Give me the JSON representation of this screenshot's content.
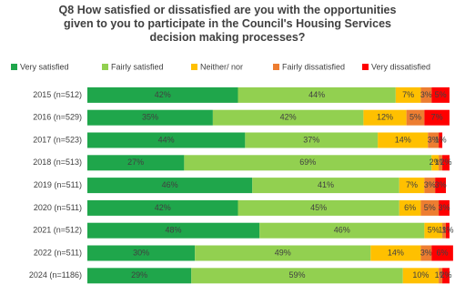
{
  "chart_data": {
    "type": "bar",
    "orientation": "horizontal",
    "stacked": true,
    "title": "Q8 How satisfied or dissatisfied are you with the opportunities given to you to participate in the Council's Housing Services decision making processes?",
    "legend": "top",
    "xlim": [
      0,
      100
    ],
    "categories": [
      "2015 (n=512)",
      "2016 (n=529)",
      "2017 (n=523)",
      "2018 (n=513)",
      "2019 (n=511)",
      "2020 (n=511)",
      "2021 (n=512)",
      "2022 (n=511)",
      "2024 (n=1186)"
    ],
    "series": [
      {
        "name": "Very satisfied",
        "color": "#1fa64b",
        "values": [
          42,
          35,
          44,
          27,
          46,
          42,
          48,
          30,
          29
        ],
        "value_labels": [
          "42%",
          "35%",
          "44%",
          "27%",
          "46%",
          "42%",
          "48%",
          "30%",
          "29%"
        ]
      },
      {
        "name": "Fairly satisfied",
        "color": "#92d050",
        "values": [
          44,
          42,
          37,
          69,
          41,
          45,
          46,
          49,
          59
        ],
        "value_labels": [
          "44%",
          "42%",
          "37%",
          "69%",
          "41%",
          "45%",
          "46%",
          "49%",
          "59%"
        ]
      },
      {
        "name": "Neither/ nor",
        "color": "#ffc000",
        "values": [
          7,
          12,
          14,
          2,
          7,
          6,
          5,
          14,
          10
        ],
        "value_labels": [
          "7%",
          "12%",
          "14%",
          "2%",
          "7%",
          "6%",
          "5%",
          "14%",
          "10%"
        ]
      },
      {
        "name": "Fairly dissatisfied",
        "color": "#ed7d31",
        "values": [
          3,
          5,
          3,
          1,
          3,
          5,
          1,
          3,
          1
        ],
        "value_labels": [
          "3%",
          "5%",
          "3%",
          "1%",
          "3%",
          "5%",
          "1%",
          "3%",
          "1%"
        ]
      },
      {
        "name": "Very dissatisfied",
        "color": "#ff0000",
        "values": [
          5,
          7,
          1,
          2,
          3,
          3,
          1,
          6,
          2
        ],
        "value_labels": [
          "5%",
          "7%",
          "1%",
          "2%",
          "3%",
          "3%",
          "1%",
          "6%",
          "2%"
        ]
      }
    ]
  }
}
